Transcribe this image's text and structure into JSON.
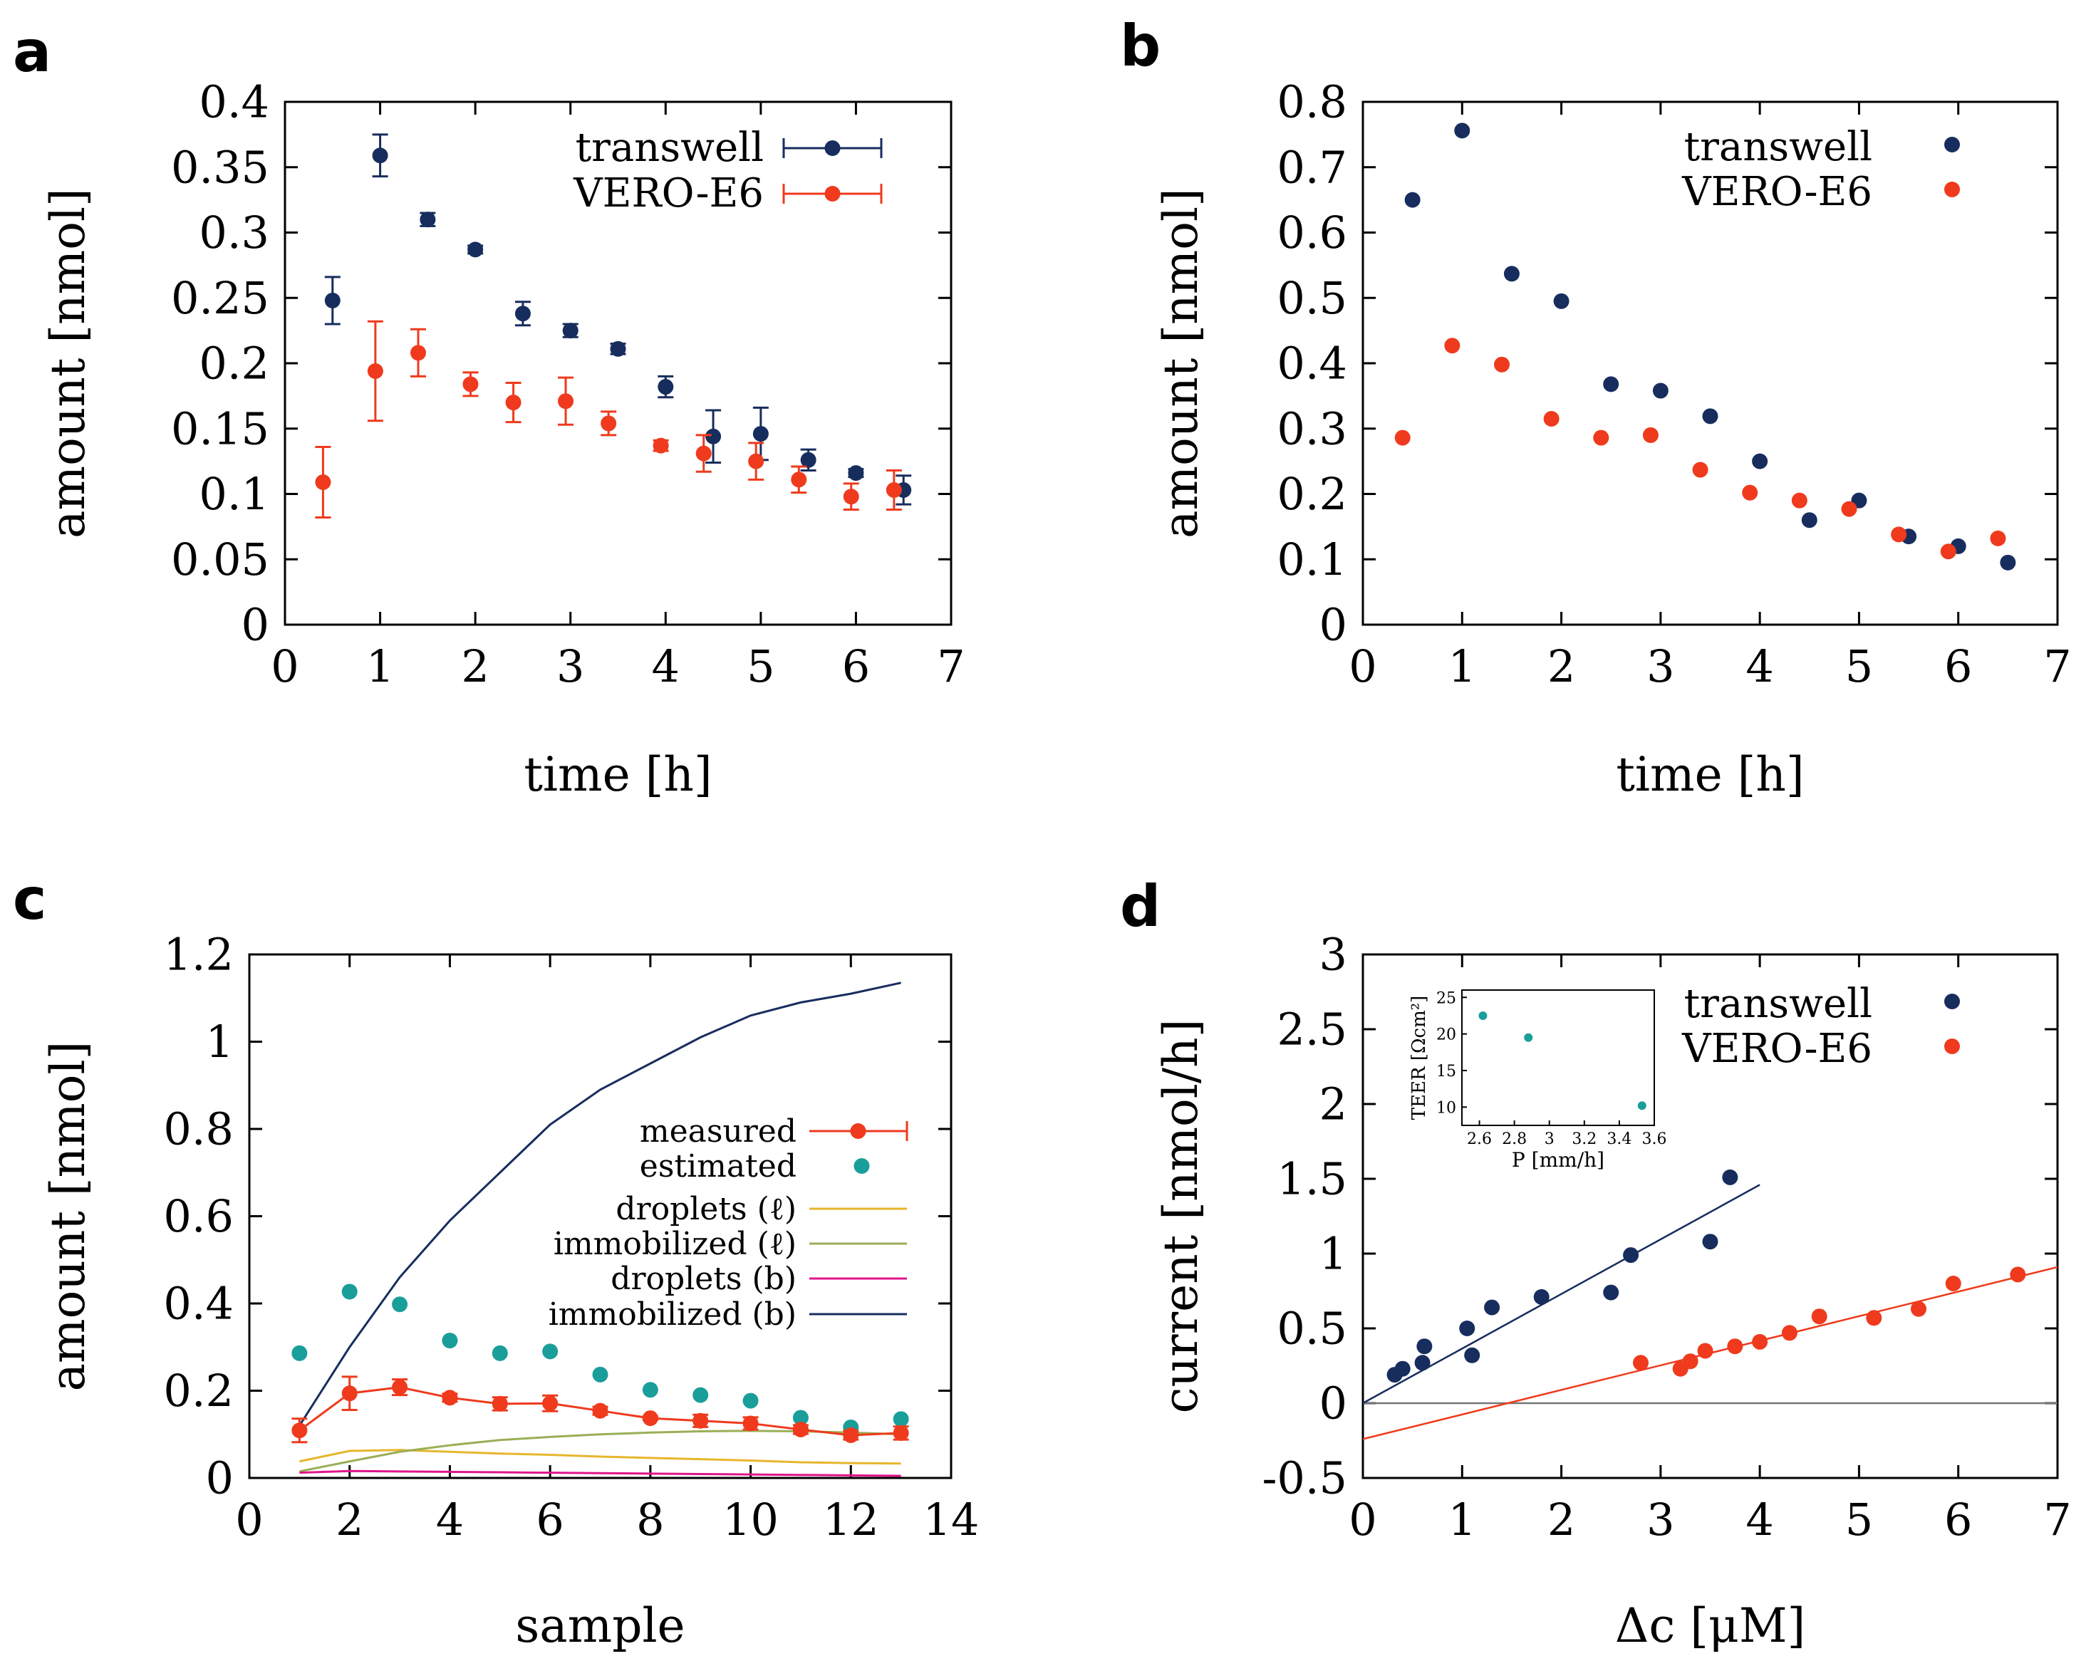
{
  "colors": {
    "transwell": "#172d5e",
    "vero": "#ef3a1d",
    "estimated": "#1a9e9a",
    "droplets_l": "#e7b62c",
    "immobilized_l": "#9aae55",
    "droplets_b": "#e0158a",
    "immobilized_b": "#172d5e",
    "zero_line": "#777777"
  },
  "chart_data": [
    {
      "panel": "a",
      "type": "scatter",
      "xlabel": "time [h]",
      "ylabel": "amount [nmol]",
      "xlim": [
        0,
        7
      ],
      "ylim": [
        0,
        0.4
      ],
      "xticks": [
        "0",
        "1",
        "2",
        "3",
        "4",
        "5",
        "6",
        "7"
      ],
      "yticks": [
        "0",
        "0.05",
        "0.1",
        "0.15",
        "0.2",
        "0.25",
        "0.3",
        "0.35",
        "0.4"
      ],
      "legend": [
        "transwell",
        "VERO-E6"
      ],
      "series": [
        {
          "name": "transwell",
          "x": [
            0.5,
            1.0,
            1.5,
            2.0,
            2.5,
            3.0,
            3.5,
            4.0,
            4.5,
            5.0,
            5.5,
            6.0,
            6.5
          ],
          "y": [
            0.248,
            0.359,
            0.31,
            0.287,
            0.238,
            0.225,
            0.211,
            0.182,
            0.144,
            0.146,
            0.126,
            0.116,
            0.103
          ],
          "err": [
            0.018,
            0.016,
            0.005,
            0.003,
            0.009,
            0.005,
            0.004,
            0.008,
            0.02,
            0.02,
            0.008,
            0.003,
            0.011
          ]
        },
        {
          "name": "VERO-E6",
          "x": [
            0.4,
            0.95,
            1.4,
            1.95,
            2.4,
            2.95,
            3.4,
            3.95,
            4.4,
            4.95,
            5.4,
            5.95,
            6.4
          ],
          "y": [
            0.109,
            0.194,
            0.208,
            0.184,
            0.17,
            0.171,
            0.154,
            0.137,
            0.131,
            0.125,
            0.111,
            0.098,
            0.103
          ],
          "err": [
            0.027,
            0.038,
            0.018,
            0.009,
            0.015,
            0.018,
            0.009,
            0.004,
            0.014,
            0.014,
            0.01,
            0.01,
            0.015
          ]
        }
      ]
    },
    {
      "panel": "b",
      "type": "scatter",
      "xlabel": "time [h]",
      "ylabel": "amount [nmol]",
      "xlim": [
        0,
        7
      ],
      "ylim": [
        0,
        0.8
      ],
      "xticks": [
        "0",
        "1",
        "2",
        "3",
        "4",
        "5",
        "6",
        "7"
      ],
      "yticks": [
        "0",
        "0.1",
        "0.2",
        "0.3",
        "0.4",
        "0.5",
        "0.6",
        "0.7",
        "0.8"
      ],
      "legend": [
        "transwell",
        "VERO-E6"
      ],
      "series": [
        {
          "name": "transwell",
          "x": [
            0.5,
            1.0,
            1.5,
            2.0,
            2.5,
            3.0,
            3.5,
            4.0,
            4.5,
            5.0,
            5.5,
            6.0,
            6.5
          ],
          "y": [
            0.65,
            0.756,
            0.537,
            0.495,
            0.368,
            0.358,
            0.319,
            0.25,
            0.16,
            0.19,
            0.135,
            0.12,
            0.095
          ]
        },
        {
          "name": "VERO-E6",
          "x": [
            0.4,
            0.9,
            1.4,
            1.9,
            2.4,
            2.9,
            3.4,
            3.9,
            4.4,
            4.9,
            5.4,
            5.9,
            6.4
          ],
          "y": [
            0.286,
            0.427,
            0.398,
            0.315,
            0.286,
            0.29,
            0.237,
            0.202,
            0.19,
            0.177,
            0.138,
            0.112,
            0.132
          ]
        }
      ]
    },
    {
      "panel": "c",
      "type": "line",
      "xlabel": "sample",
      "ylabel": "amount [nmol]",
      "xlim": [
        0,
        14
      ],
      "ylim": [
        0,
        1.2
      ],
      "xticks": [
        "0",
        "2",
        "4",
        "6",
        "8",
        "10",
        "12",
        "14"
      ],
      "yticks": [
        "0",
        "0.2",
        "0.4",
        "0.6",
        "0.8",
        "1",
        "1.2"
      ],
      "legend": [
        "measured",
        "estimated",
        "droplets (ℓ)",
        "immobilized (ℓ)",
        "droplets (b)",
        "immobilized (b)"
      ],
      "x": [
        1,
        2,
        3,
        4,
        5,
        6,
        7,
        8,
        9,
        10,
        11,
        12,
        13
      ],
      "series": [
        {
          "name": "measured",
          "y": [
            0.109,
            0.194,
            0.208,
            0.184,
            0.17,
            0.171,
            0.154,
            0.137,
            0.131,
            0.125,
            0.111,
            0.098,
            0.103
          ],
          "err": [
            0.027,
            0.038,
            0.018,
            0.009,
            0.015,
            0.018,
            0.009,
            0.004,
            0.014,
            0.014,
            0.01,
            0.01,
            0.015
          ]
        },
        {
          "name": "estimated",
          "y": [
            0.286,
            0.427,
            0.398,
            0.315,
            0.286,
            0.29,
            0.237,
            0.202,
            0.19,
            0.177,
            0.138,
            0.116,
            0.135
          ]
        },
        {
          "name": "droplets (ℓ)",
          "y": [
            0.038,
            0.062,
            0.064,
            0.06,
            0.056,
            0.053,
            0.049,
            0.046,
            0.043,
            0.04,
            0.036,
            0.034,
            0.033
          ]
        },
        {
          "name": "immobilized (ℓ)",
          "y": [
            0.015,
            0.038,
            0.06,
            0.075,
            0.087,
            0.094,
            0.1,
            0.104,
            0.107,
            0.108,
            0.107,
            0.104,
            0.1
          ]
        },
        {
          "name": "droplets (b)",
          "y": [
            0.012,
            0.016,
            0.015,
            0.014,
            0.013,
            0.012,
            0.011,
            0.01,
            0.009,
            0.008,
            0.007,
            0.006,
            0.005
          ]
        },
        {
          "name": "immobilized (b)",
          "y": [
            0.12,
            0.3,
            0.46,
            0.59,
            0.7,
            0.81,
            0.89,
            0.95,
            1.01,
            1.06,
            1.09,
            1.11,
            1.135
          ]
        }
      ]
    },
    {
      "panel": "d",
      "type": "scatter",
      "xlabel": "Δc [μM]",
      "ylabel": "current [nmol/h]",
      "xlim": [
        0,
        7
      ],
      "ylim": [
        -0.5,
        3
      ],
      "xticks": [
        "0",
        "1",
        "2",
        "3",
        "4",
        "5",
        "6",
        "7"
      ],
      "yticks": [
        "-0.5",
        "0",
        "0.5",
        "1",
        "1.5",
        "2",
        "2.5",
        "3"
      ],
      "legend": [
        "transwell",
        "VERO-E6"
      ],
      "series": [
        {
          "name": "transwell",
          "x": [
            0.32,
            0.4,
            0.6,
            0.62,
            1.05,
            1.1,
            1.3,
            1.8,
            2.5,
            2.7,
            3.5,
            3.7
          ],
          "y": [
            0.19,
            0.23,
            0.27,
            0.38,
            0.5,
            0.32,
            0.64,
            0.71,
            0.74,
            0.99,
            1.08,
            1.51
          ],
          "fit": {
            "x": [
              0,
              4.0
            ],
            "y": [
              0.0,
              1.46
            ]
          }
        },
        {
          "name": "VERO-E6",
          "x": [
            2.8,
            3.2,
            3.3,
            3.45,
            3.75,
            4.0,
            4.3,
            4.6,
            5.15,
            5.6,
            5.95,
            6.6
          ],
          "y": [
            0.27,
            0.23,
            0.28,
            0.35,
            0.38,
            0.41,
            0.47,
            0.58,
            0.57,
            0.63,
            0.8,
            0.86
          ],
          "fit": {
            "x": [
              0,
              7.0
            ],
            "y": [
              -0.24,
              0.91
            ]
          }
        }
      ],
      "inset": {
        "type": "scatter",
        "xlabel": "P [mm/h]",
        "ylabel": "TEER [Ωcm²]",
        "xlim": [
          2.5,
          3.6
        ],
        "ylim": [
          7.5,
          26
        ],
        "xticks": [
          "2.6",
          "2.8",
          "3",
          "3.2",
          "3.4",
          "3.6"
        ],
        "yticks": [
          "10",
          "15",
          "20",
          "25"
        ],
        "x": [
          2.62,
          2.88,
          3.53
        ],
        "y": [
          22.5,
          19.5,
          10.2
        ]
      }
    }
  ],
  "panel_letters": [
    "a",
    "b",
    "c",
    "d"
  ]
}
